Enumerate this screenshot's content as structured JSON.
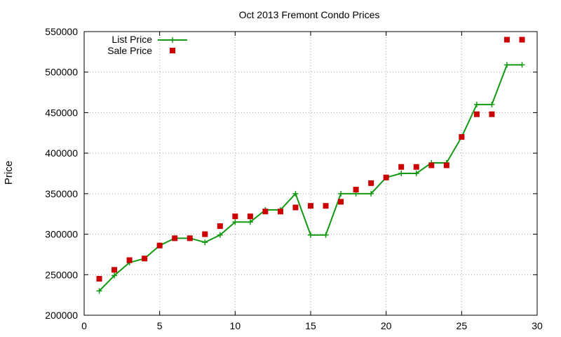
{
  "chart_data": {
    "type": "line",
    "title": "Oct 2013 Fremont Condo Prices",
    "xlabel": "",
    "ylabel": "Price",
    "xlim": [
      0,
      30
    ],
    "ylim": [
      200000,
      550000
    ],
    "x_ticks": [
      "0",
      "5",
      "10",
      "15",
      "20",
      "25",
      "30"
    ],
    "y_ticks": [
      "200000",
      "250000",
      "300000",
      "350000",
      "400000",
      "450000",
      "500000",
      "550000"
    ],
    "grid": true,
    "legend_position": "top-left",
    "series": [
      {
        "name": "List Price",
        "style": "line-with-plus-markers",
        "color": "#119a11",
        "x": [
          1,
          2,
          3,
          4,
          5,
          6,
          7,
          8,
          9,
          10,
          11,
          12,
          13,
          14,
          15,
          16,
          17,
          18,
          19,
          20,
          21,
          22,
          23,
          24,
          25,
          26,
          27,
          28,
          29
        ],
        "values": [
          230000,
          249000,
          265000,
          270000,
          286000,
          295000,
          295000,
          290000,
          299000,
          315000,
          315000,
          330000,
          330000,
          350000,
          299000,
          299000,
          350000,
          350000,
          350000,
          370000,
          375000,
          375000,
          388000,
          388000,
          420000,
          460000,
          460000,
          509000,
          509000
        ]
      },
      {
        "name": "Sale Price",
        "style": "square-markers",
        "color": "#cc0000",
        "x": [
          1,
          2,
          3,
          4,
          5,
          6,
          7,
          8,
          9,
          10,
          11,
          12,
          13,
          14,
          15,
          16,
          17,
          18,
          19,
          20,
          21,
          22,
          23,
          24,
          25,
          26,
          27,
          28,
          29
        ],
        "values": [
          245000,
          256000,
          268000,
          270000,
          286000,
          295000,
          295000,
          300000,
          310000,
          322000,
          322000,
          328000,
          328000,
          333000,
          335000,
          335000,
          340000,
          355000,
          363000,
          370000,
          383000,
          383000,
          385000,
          385000,
          420000,
          448000,
          448000,
          540000,
          540000
        ]
      }
    ]
  }
}
